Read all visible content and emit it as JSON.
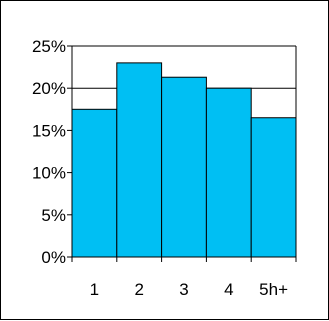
{
  "chart_data": {
    "type": "bar",
    "categories": [
      "1",
      "2",
      "3",
      "4",
      "5h+"
    ],
    "values": [
      17.5,
      23.0,
      21.3,
      20.0,
      16.5
    ],
    "y_unit": "%",
    "ylim": [
      0,
      25
    ],
    "y_ticks": [
      "0%",
      "5%",
      "10%",
      "15%",
      "20%",
      "25%"
    ],
    "grid": "horizontal at 20% and 25%",
    "bar_color": "#00BFF3",
    "border_color": "#000000",
    "legend": "none"
  }
}
